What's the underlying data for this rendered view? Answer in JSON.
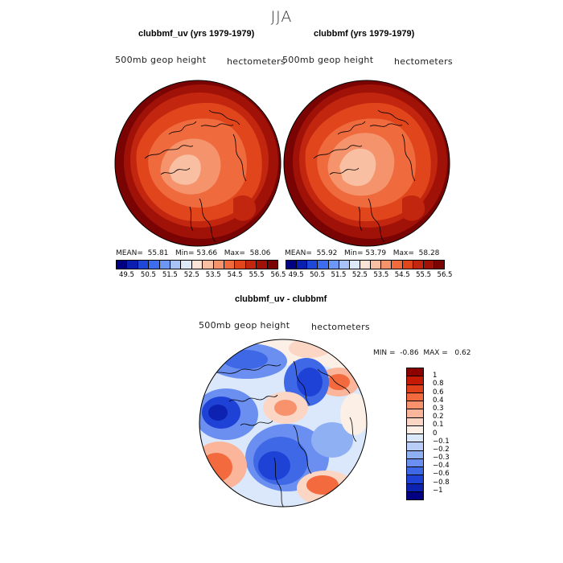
{
  "season": "JJA",
  "panels": [
    {
      "title": "clubbmf_uv (yrs 1979-1979)",
      "variable": "500mb geop height",
      "units": "hectometers",
      "stats": {
        "mean_label": "MEAN=",
        "mean": "55.81",
        "min_label": "Min=",
        "min": "53.66",
        "max_label": "Max=",
        "max": "58.06"
      }
    },
    {
      "title": "clubbmf (yrs 1979-1979)",
      "variable": "500mb geop height",
      "units": "hectometers",
      "stats": {
        "mean_label": "MEAN=",
        "mean": "55.92",
        "min_label": "Min=",
        "min": "53.79",
        "max_label": "Max=",
        "max": "58.28"
      }
    }
  ],
  "colorbar": {
    "ticks": [
      "49.5",
      "50.5",
      "51.5",
      "52.5",
      "53.5",
      "54.5",
      "55.5",
      "56.5"
    ],
    "colors": [
      "#000080",
      "#0a1fb0",
      "#1f47d8",
      "#3d6cee",
      "#6c97f5",
      "#a7c3f7",
      "#dde8fa",
      "#fbe3d6",
      "#f8bfa3",
      "#f5946c",
      "#ef6a3c",
      "#e0451b",
      "#c2260f",
      "#a01208",
      "#7a0303"
    ]
  },
  "diff": {
    "title": "clubbmf_uv - clubbmf",
    "variable": "500mb geop height",
    "units": "hectometers",
    "stats": {
      "min_label": "MIN =",
      "min": "-0.86",
      "max_label": "MAX =",
      "max": "0.62"
    },
    "levels": [
      "1",
      "0.8",
      "0.6",
      "0.4",
      "0.3",
      "0.2",
      "0.1",
      "0",
      "−0.1",
      "−0.2",
      "−0.3",
      "−0.4",
      "−0.6",
      "−0.8",
      "−1"
    ],
    "colors": [
      "#8c0000",
      "#c41a05",
      "#e0401a",
      "#f26a3d",
      "#f7926c",
      "#fab59a",
      "#fcd6c4",
      "#fbefe6",
      "#dbe8fb",
      "#b8cdf7",
      "#8fb0f2",
      "#6a8ff0",
      "#3f68e6",
      "#1f42d6",
      "#0d22b0",
      "#000080"
    ]
  },
  "palette": {
    "ocean_dark": "#8c1200",
    "land_outline": "#000000"
  }
}
